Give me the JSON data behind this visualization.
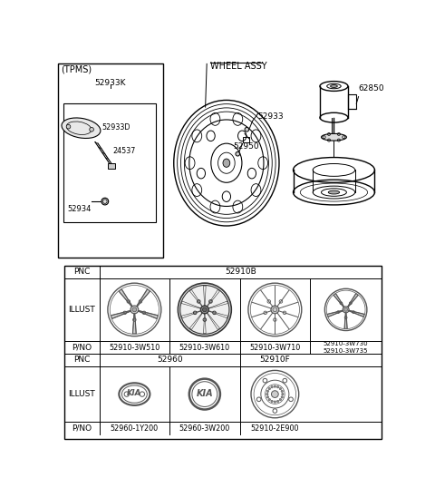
{
  "bg_color": "#ffffff",
  "line_color": "#000000",
  "gray_color": "#666666",
  "pnc1": "52910B",
  "pnc2_left": "52960",
  "pnc2_right": "52910F",
  "pno_row1": [
    "52910-3W510",
    "52910-3W610",
    "52910-3W710",
    "52910-3W730\n52910-3W735"
  ],
  "pno_row2": [
    "52960-1Y200",
    "52960-3W200",
    "52910-2E900"
  ],
  "labels": {
    "tpms": "(TPMS)",
    "52933K": "52933K",
    "52933D": "52933D",
    "24537": "24537",
    "52934": "52934",
    "wheel_assy": "WHEEL ASSY",
    "52933": "52933",
    "52950": "52950",
    "62850": "62850"
  }
}
